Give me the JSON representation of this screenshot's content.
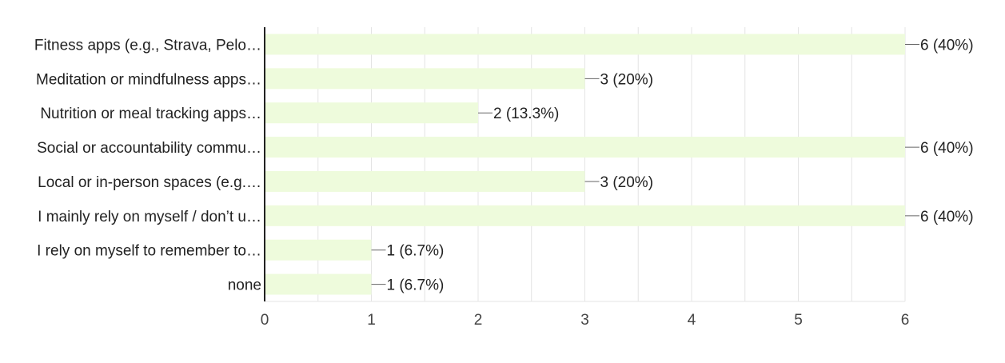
{
  "chart_data": {
    "type": "bar",
    "orientation": "horizontal",
    "categories": [
      "Fitness apps (e.g., Strava, Pelo…",
      "Meditation or mindfulness apps…",
      "Nutrition or meal tracking apps…",
      "Social or accountability commu…",
      "Local or in-person spaces (e.g.…",
      "I mainly rely on myself / don’t u…",
      "I rely on myself to remember to…",
      "none"
    ],
    "values": [
      6,
      3,
      2,
      6,
      3,
      6,
      1,
      1
    ],
    "value_labels": [
      "6 (40%)",
      "3 (20%)",
      "2 (13.3%)",
      "6 (40%)",
      "3 (20%)",
      "6 (40%)",
      "1 (6.7%)",
      "1 (6.7%)"
    ],
    "xlim": [
      0,
      6
    ],
    "xticks": [
      "0",
      "1",
      "2",
      "3",
      "4",
      "5",
      "6"
    ],
    "grid": true,
    "title": "",
    "xlabel": "",
    "ylabel": "",
    "colors": {
      "bar": "#eefbdc",
      "axis": "#222222",
      "grid": "#e4e4e4",
      "leader": "#666666"
    }
  }
}
